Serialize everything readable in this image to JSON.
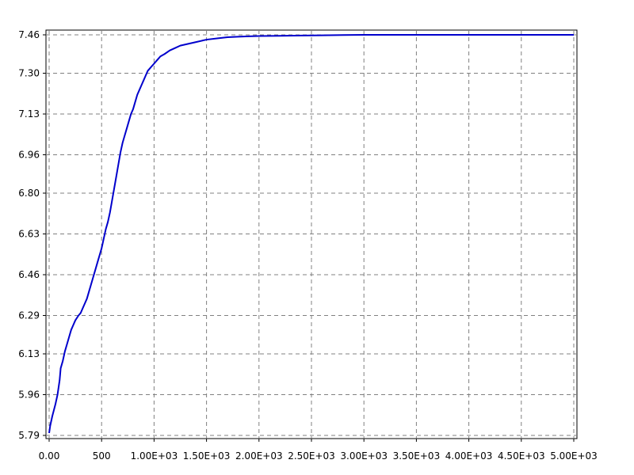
{
  "chart_data": {
    "type": "line",
    "title": "",
    "xlabel": "",
    "ylabel": "",
    "xlim": [
      0,
      5000
    ],
    "ylim": [
      5.79,
      7.46
    ],
    "grid": true,
    "x_ticks": [
      0,
      500,
      1000,
      1500,
      2000,
      2500,
      3000,
      3500,
      4000,
      4500,
      5000
    ],
    "x_tick_labels": [
      "0.00",
      "500",
      "1.00E+03",
      "1.50E+03",
      "2.00E+03",
      "2.50E+03",
      "3.00E+03",
      "3.50E+03",
      "4.00E+03",
      "4.50E+03",
      "5.00E+03"
    ],
    "y_ticks": [
      5.79,
      5.96,
      6.13,
      6.29,
      6.46,
      6.63,
      6.8,
      6.96,
      7.13,
      7.3,
      7.46
    ],
    "y_tick_labels": [
      "5.79",
      "5.96",
      "6.13",
      "6.29",
      "6.46",
      "6.63",
      "6.80",
      "6.96",
      "7.13",
      "7.30",
      "7.46"
    ],
    "series": [
      {
        "color": "#0000cc",
        "x": [
          0,
          10,
          30,
          60,
          80,
          100,
          110,
          130,
          150,
          170,
          190,
          210,
          230,
          250,
          280,
          300,
          320,
          340,
          360,
          380,
          400,
          420,
          440,
          460,
          480,
          500,
          520,
          540,
          560,
          580,
          600,
          620,
          640,
          660,
          680,
          700,
          720,
          740,
          760,
          780,
          800,
          820,
          840,
          860,
          880,
          900,
          920,
          940,
          960,
          980,
          1000,
          1020,
          1040,
          1060,
          1080,
          1100,
          1150,
          1200,
          1250,
          1300,
          1400,
          1500,
          1600,
          1700,
          1800,
          1900,
          2000,
          2200,
          2400,
          2600,
          2800,
          3000,
          3500,
          4000,
          4500,
          5000
        ],
        "y": [
          5.8,
          5.83,
          5.87,
          5.92,
          5.96,
          6.02,
          6.07,
          6.1,
          6.14,
          6.17,
          6.2,
          6.23,
          6.25,
          6.27,
          6.29,
          6.3,
          6.32,
          6.34,
          6.36,
          6.39,
          6.42,
          6.45,
          6.48,
          6.51,
          6.54,
          6.57,
          6.61,
          6.65,
          6.68,
          6.72,
          6.77,
          6.82,
          6.87,
          6.92,
          6.97,
          7.01,
          7.04,
          7.07,
          7.1,
          7.13,
          7.15,
          7.18,
          7.21,
          7.23,
          7.25,
          7.27,
          7.29,
          7.31,
          7.32,
          7.33,
          7.34,
          7.35,
          7.36,
          7.37,
          7.375,
          7.38,
          7.395,
          7.405,
          7.415,
          7.42,
          7.43,
          7.44,
          7.445,
          7.45,
          7.452,
          7.454,
          7.455,
          7.456,
          7.457,
          7.458,
          7.459,
          7.46,
          7.46,
          7.46,
          7.46,
          7.46
        ]
      }
    ]
  }
}
